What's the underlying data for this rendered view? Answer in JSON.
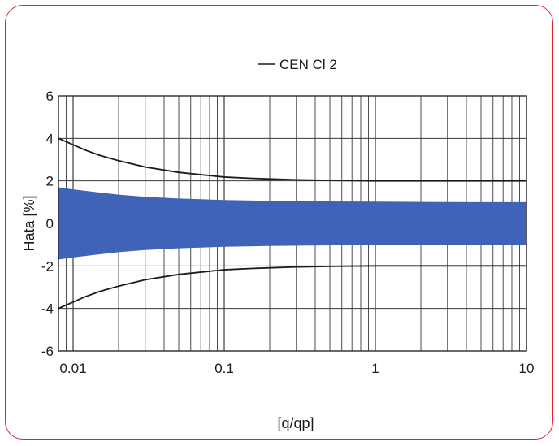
{
  "frame": {
    "border_color": "#e0242a"
  },
  "chart_data": {
    "type": "line",
    "xscale": "log",
    "xlim": [
      0.008,
      10
    ],
    "ylim": [
      -6,
      6
    ],
    "xticks": [
      0.01,
      0.1,
      1,
      10
    ],
    "xtick_labels": [
      "0.01",
      "0.1",
      "1",
      "10"
    ],
    "yticks": [
      -6,
      -4,
      -2,
      0,
      2,
      4,
      6
    ],
    "ytick_labels": [
      "-6",
      "-4",
      "-2",
      "0",
      "2",
      "4",
      "6"
    ],
    "xlabel": "[q/qp]",
    "ylabel": "Hata [%]",
    "grid": true,
    "legend": {
      "position": "top-center",
      "entries": [
        "CEN Cl 2"
      ]
    },
    "series": [
      {
        "name": "CEN Cl 2",
        "kind": "envelope-lines",
        "color": "#1a1a1a",
        "x": [
          0.008,
          0.01,
          0.012,
          0.015,
          0.02,
          0.03,
          0.05,
          0.08,
          0.1,
          0.15,
          0.2,
          0.3,
          0.5,
          1,
          2,
          5,
          10
        ],
        "upper": [
          4.0,
          3.7,
          3.45,
          3.2,
          2.95,
          2.65,
          2.4,
          2.25,
          2.18,
          2.12,
          2.09,
          2.05,
          2.02,
          2.0,
          2.0,
          2.0,
          2.0
        ],
        "lower": [
          -4.0,
          -3.7,
          -3.45,
          -3.2,
          -2.95,
          -2.65,
          -2.4,
          -2.25,
          -2.18,
          -2.12,
          -2.09,
          -2.05,
          -2.02,
          -2.0,
          -2.0,
          -2.0,
          -2.0
        ]
      },
      {
        "kind": "band",
        "color": "#3f63b8",
        "x": [
          0.008,
          0.01,
          0.015,
          0.02,
          0.03,
          0.05,
          0.1,
          0.2,
          0.5,
          1,
          2,
          5,
          10
        ],
        "upper": [
          1.7,
          1.6,
          1.45,
          1.35,
          1.25,
          1.17,
          1.1,
          1.06,
          1.03,
          1.02,
          1.01,
          1.0,
          1.0
        ],
        "lower": [
          -1.7,
          -1.6,
          -1.45,
          -1.35,
          -1.25,
          -1.17,
          -1.1,
          -1.06,
          -1.03,
          -1.02,
          -1.01,
          -1.0,
          -1.0
        ]
      }
    ]
  }
}
